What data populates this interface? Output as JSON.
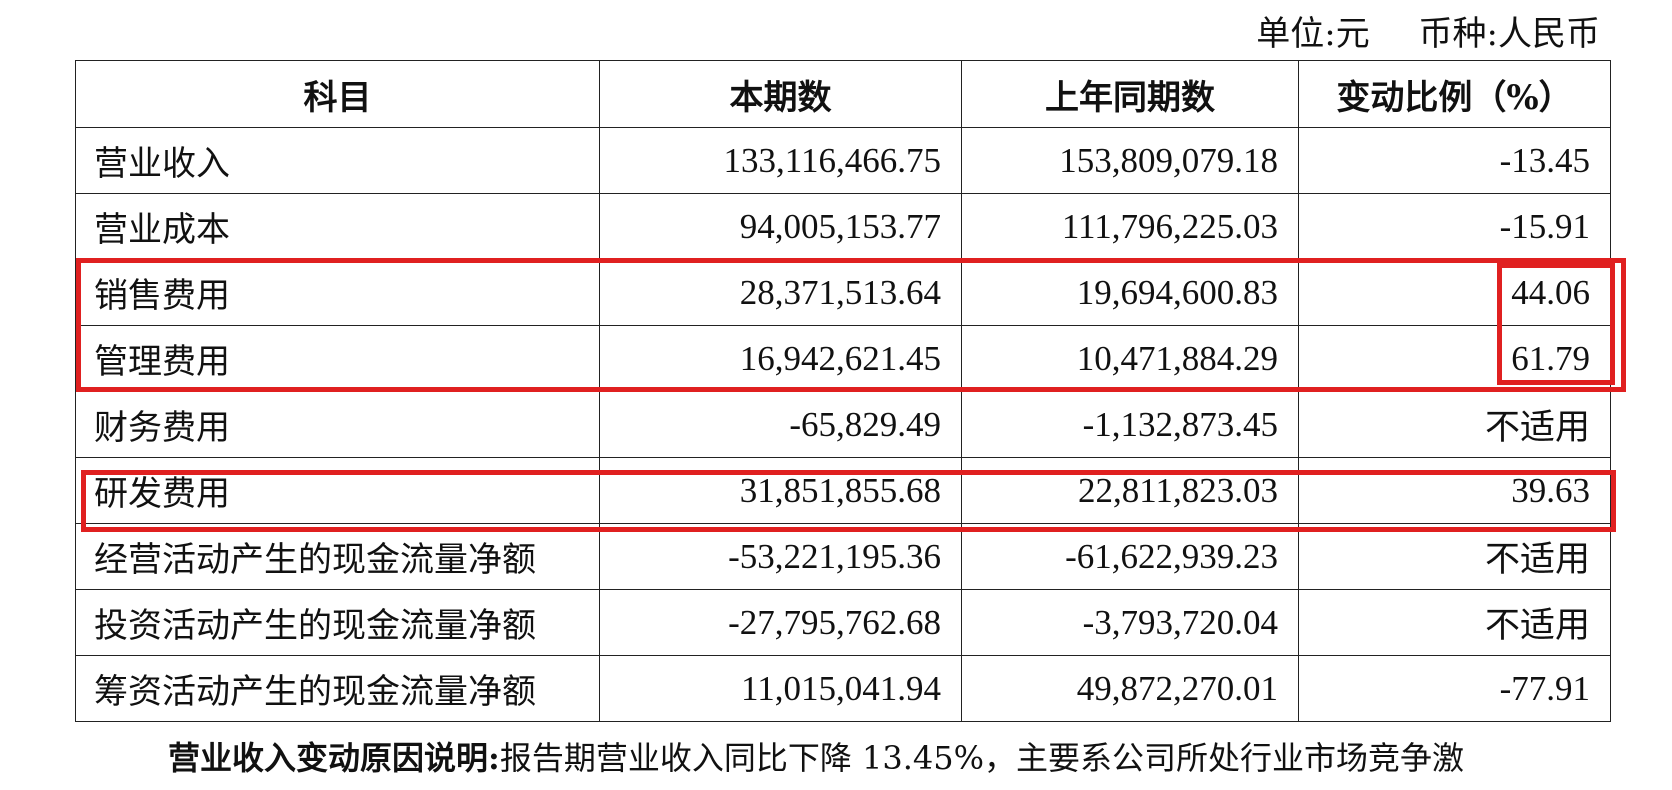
{
  "unit": {
    "unit_label": "单位:元",
    "currency_label": "币种:人民币"
  },
  "table": {
    "headers": [
      "科目",
      "本期数",
      "上年同期数",
      "变动比例（%）"
    ],
    "rows": [
      [
        "营业收入",
        "133,116,466.75",
        "153,809,079.18",
        "-13.45"
      ],
      [
        "营业成本",
        "94,005,153.77",
        "111,796,225.03",
        "-15.91"
      ],
      [
        "销售费用",
        "28,371,513.64",
        "19,694,600.83",
        "44.06"
      ],
      [
        "管理费用",
        "16,942,621.45",
        "10,471,884.29",
        "61.79"
      ],
      [
        "财务费用",
        "-65,829.49",
        "-1,132,873.45",
        "不适用"
      ],
      [
        "研发费用",
        "31,851,855.68",
        "22,811,823.03",
        "39.63"
      ],
      [
        "经营活动产生的现金流量净额",
        "-53,221,195.36",
        "-61,622,939.23",
        "不适用"
      ],
      [
        "投资活动产生的现金流量净额",
        "-27,795,762.68",
        "-3,793,720.04",
        "不适用"
      ],
      [
        "筹资活动产生的现金流量净额",
        "11,015,041.94",
        "49,872,270.01",
        "-77.91"
      ]
    ]
  },
  "highlight_color": "#e02020",
  "explanation": {
    "lead": "营业收入变动原因说明:",
    "text": "报告期营业收入同比下降 13.45%，主要系公司所处行业市场竞争激"
  }
}
